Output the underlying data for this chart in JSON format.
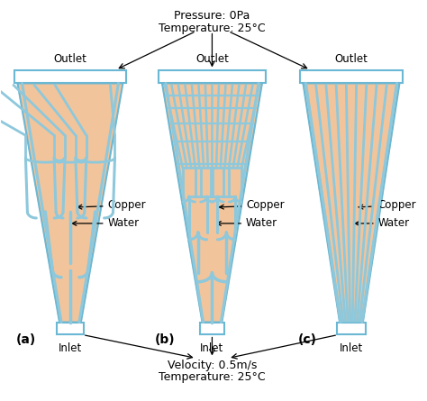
{
  "background_color": "#ffffff",
  "copper_color": "#F2C49B",
  "channel_color": "#8DC8DC",
  "outline_color": "#6BB8D4",
  "top_text_line1": "Pressure: 0Pa",
  "top_text_line2": "Temperature: 25°C",
  "bottom_text_line1": "Velocity: 0.5m/s",
  "bottom_text_line2": "Temperature: 25°C",
  "label_a": "(a)",
  "label_b": "(b)",
  "label_c": "(c)",
  "outlet_label": "Outlet",
  "inlet_label": "Inlet",
  "copper_label": "Copper",
  "water_label": "Water",
  "figsize": [
    4.74,
    4.45
  ],
  "dpi": 100
}
